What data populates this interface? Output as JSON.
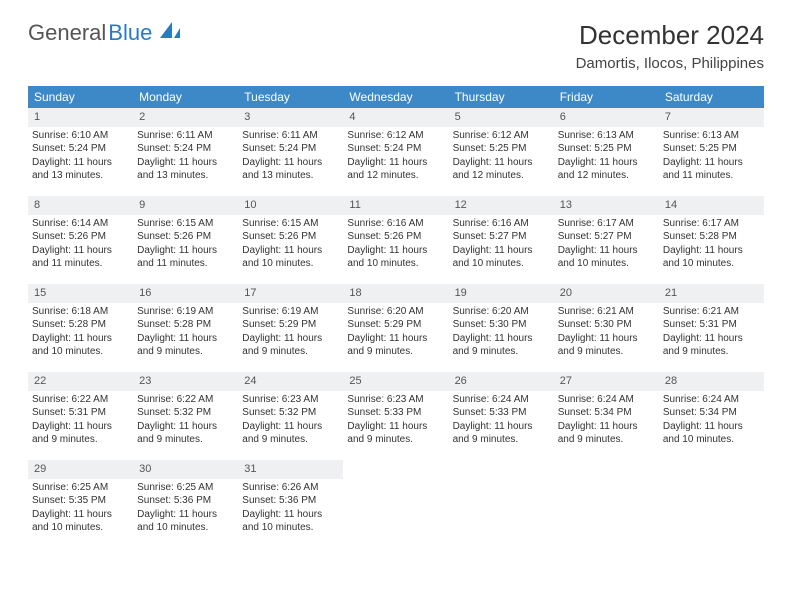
{
  "logo": {
    "text_gray": "General",
    "text_blue": "Blue"
  },
  "title": "December 2024",
  "location": "Damortis, Ilocos, Philippines",
  "colors": {
    "header_bg": "#3d88c7",
    "header_fg": "#ffffff",
    "daynum_bg": "#eef0f2",
    "border": "#3d88c7",
    "logo_blue": "#2a7cc0"
  },
  "weekdays": [
    "Sunday",
    "Monday",
    "Tuesday",
    "Wednesday",
    "Thursday",
    "Friday",
    "Saturday"
  ],
  "weeks": [
    [
      {
        "n": "1",
        "sr": "Sunrise: 6:10 AM",
        "ss": "Sunset: 5:24 PM",
        "dl": "Daylight: 11 hours and 13 minutes."
      },
      {
        "n": "2",
        "sr": "Sunrise: 6:11 AM",
        "ss": "Sunset: 5:24 PM",
        "dl": "Daylight: 11 hours and 13 minutes."
      },
      {
        "n": "3",
        "sr": "Sunrise: 6:11 AM",
        "ss": "Sunset: 5:24 PM",
        "dl": "Daylight: 11 hours and 13 minutes."
      },
      {
        "n": "4",
        "sr": "Sunrise: 6:12 AM",
        "ss": "Sunset: 5:24 PM",
        "dl": "Daylight: 11 hours and 12 minutes."
      },
      {
        "n": "5",
        "sr": "Sunrise: 6:12 AM",
        "ss": "Sunset: 5:25 PM",
        "dl": "Daylight: 11 hours and 12 minutes."
      },
      {
        "n": "6",
        "sr": "Sunrise: 6:13 AM",
        "ss": "Sunset: 5:25 PM",
        "dl": "Daylight: 11 hours and 12 minutes."
      },
      {
        "n": "7",
        "sr": "Sunrise: 6:13 AM",
        "ss": "Sunset: 5:25 PM",
        "dl": "Daylight: 11 hours and 11 minutes."
      }
    ],
    [
      {
        "n": "8",
        "sr": "Sunrise: 6:14 AM",
        "ss": "Sunset: 5:26 PM",
        "dl": "Daylight: 11 hours and 11 minutes."
      },
      {
        "n": "9",
        "sr": "Sunrise: 6:15 AM",
        "ss": "Sunset: 5:26 PM",
        "dl": "Daylight: 11 hours and 11 minutes."
      },
      {
        "n": "10",
        "sr": "Sunrise: 6:15 AM",
        "ss": "Sunset: 5:26 PM",
        "dl": "Daylight: 11 hours and 10 minutes."
      },
      {
        "n": "11",
        "sr": "Sunrise: 6:16 AM",
        "ss": "Sunset: 5:26 PM",
        "dl": "Daylight: 11 hours and 10 minutes."
      },
      {
        "n": "12",
        "sr": "Sunrise: 6:16 AM",
        "ss": "Sunset: 5:27 PM",
        "dl": "Daylight: 11 hours and 10 minutes."
      },
      {
        "n": "13",
        "sr": "Sunrise: 6:17 AM",
        "ss": "Sunset: 5:27 PM",
        "dl": "Daylight: 11 hours and 10 minutes."
      },
      {
        "n": "14",
        "sr": "Sunrise: 6:17 AM",
        "ss": "Sunset: 5:28 PM",
        "dl": "Daylight: 11 hours and 10 minutes."
      }
    ],
    [
      {
        "n": "15",
        "sr": "Sunrise: 6:18 AM",
        "ss": "Sunset: 5:28 PM",
        "dl": "Daylight: 11 hours and 10 minutes."
      },
      {
        "n": "16",
        "sr": "Sunrise: 6:19 AM",
        "ss": "Sunset: 5:28 PM",
        "dl": "Daylight: 11 hours and 9 minutes."
      },
      {
        "n": "17",
        "sr": "Sunrise: 6:19 AM",
        "ss": "Sunset: 5:29 PM",
        "dl": "Daylight: 11 hours and 9 minutes."
      },
      {
        "n": "18",
        "sr": "Sunrise: 6:20 AM",
        "ss": "Sunset: 5:29 PM",
        "dl": "Daylight: 11 hours and 9 minutes."
      },
      {
        "n": "19",
        "sr": "Sunrise: 6:20 AM",
        "ss": "Sunset: 5:30 PM",
        "dl": "Daylight: 11 hours and 9 minutes."
      },
      {
        "n": "20",
        "sr": "Sunrise: 6:21 AM",
        "ss": "Sunset: 5:30 PM",
        "dl": "Daylight: 11 hours and 9 minutes."
      },
      {
        "n": "21",
        "sr": "Sunrise: 6:21 AM",
        "ss": "Sunset: 5:31 PM",
        "dl": "Daylight: 11 hours and 9 minutes."
      }
    ],
    [
      {
        "n": "22",
        "sr": "Sunrise: 6:22 AM",
        "ss": "Sunset: 5:31 PM",
        "dl": "Daylight: 11 hours and 9 minutes."
      },
      {
        "n": "23",
        "sr": "Sunrise: 6:22 AM",
        "ss": "Sunset: 5:32 PM",
        "dl": "Daylight: 11 hours and 9 minutes."
      },
      {
        "n": "24",
        "sr": "Sunrise: 6:23 AM",
        "ss": "Sunset: 5:32 PM",
        "dl": "Daylight: 11 hours and 9 minutes."
      },
      {
        "n": "25",
        "sr": "Sunrise: 6:23 AM",
        "ss": "Sunset: 5:33 PM",
        "dl": "Daylight: 11 hours and 9 minutes."
      },
      {
        "n": "26",
        "sr": "Sunrise: 6:24 AM",
        "ss": "Sunset: 5:33 PM",
        "dl": "Daylight: 11 hours and 9 minutes."
      },
      {
        "n": "27",
        "sr": "Sunrise: 6:24 AM",
        "ss": "Sunset: 5:34 PM",
        "dl": "Daylight: 11 hours and 9 minutes."
      },
      {
        "n": "28",
        "sr": "Sunrise: 6:24 AM",
        "ss": "Sunset: 5:34 PM",
        "dl": "Daylight: 11 hours and 10 minutes."
      }
    ],
    [
      {
        "n": "29",
        "sr": "Sunrise: 6:25 AM",
        "ss": "Sunset: 5:35 PM",
        "dl": "Daylight: 11 hours and 10 minutes."
      },
      {
        "n": "30",
        "sr": "Sunrise: 6:25 AM",
        "ss": "Sunset: 5:36 PM",
        "dl": "Daylight: 11 hours and 10 minutes."
      },
      {
        "n": "31",
        "sr": "Sunrise: 6:26 AM",
        "ss": "Sunset: 5:36 PM",
        "dl": "Daylight: 11 hours and 10 minutes."
      },
      null,
      null,
      null,
      null
    ]
  ]
}
